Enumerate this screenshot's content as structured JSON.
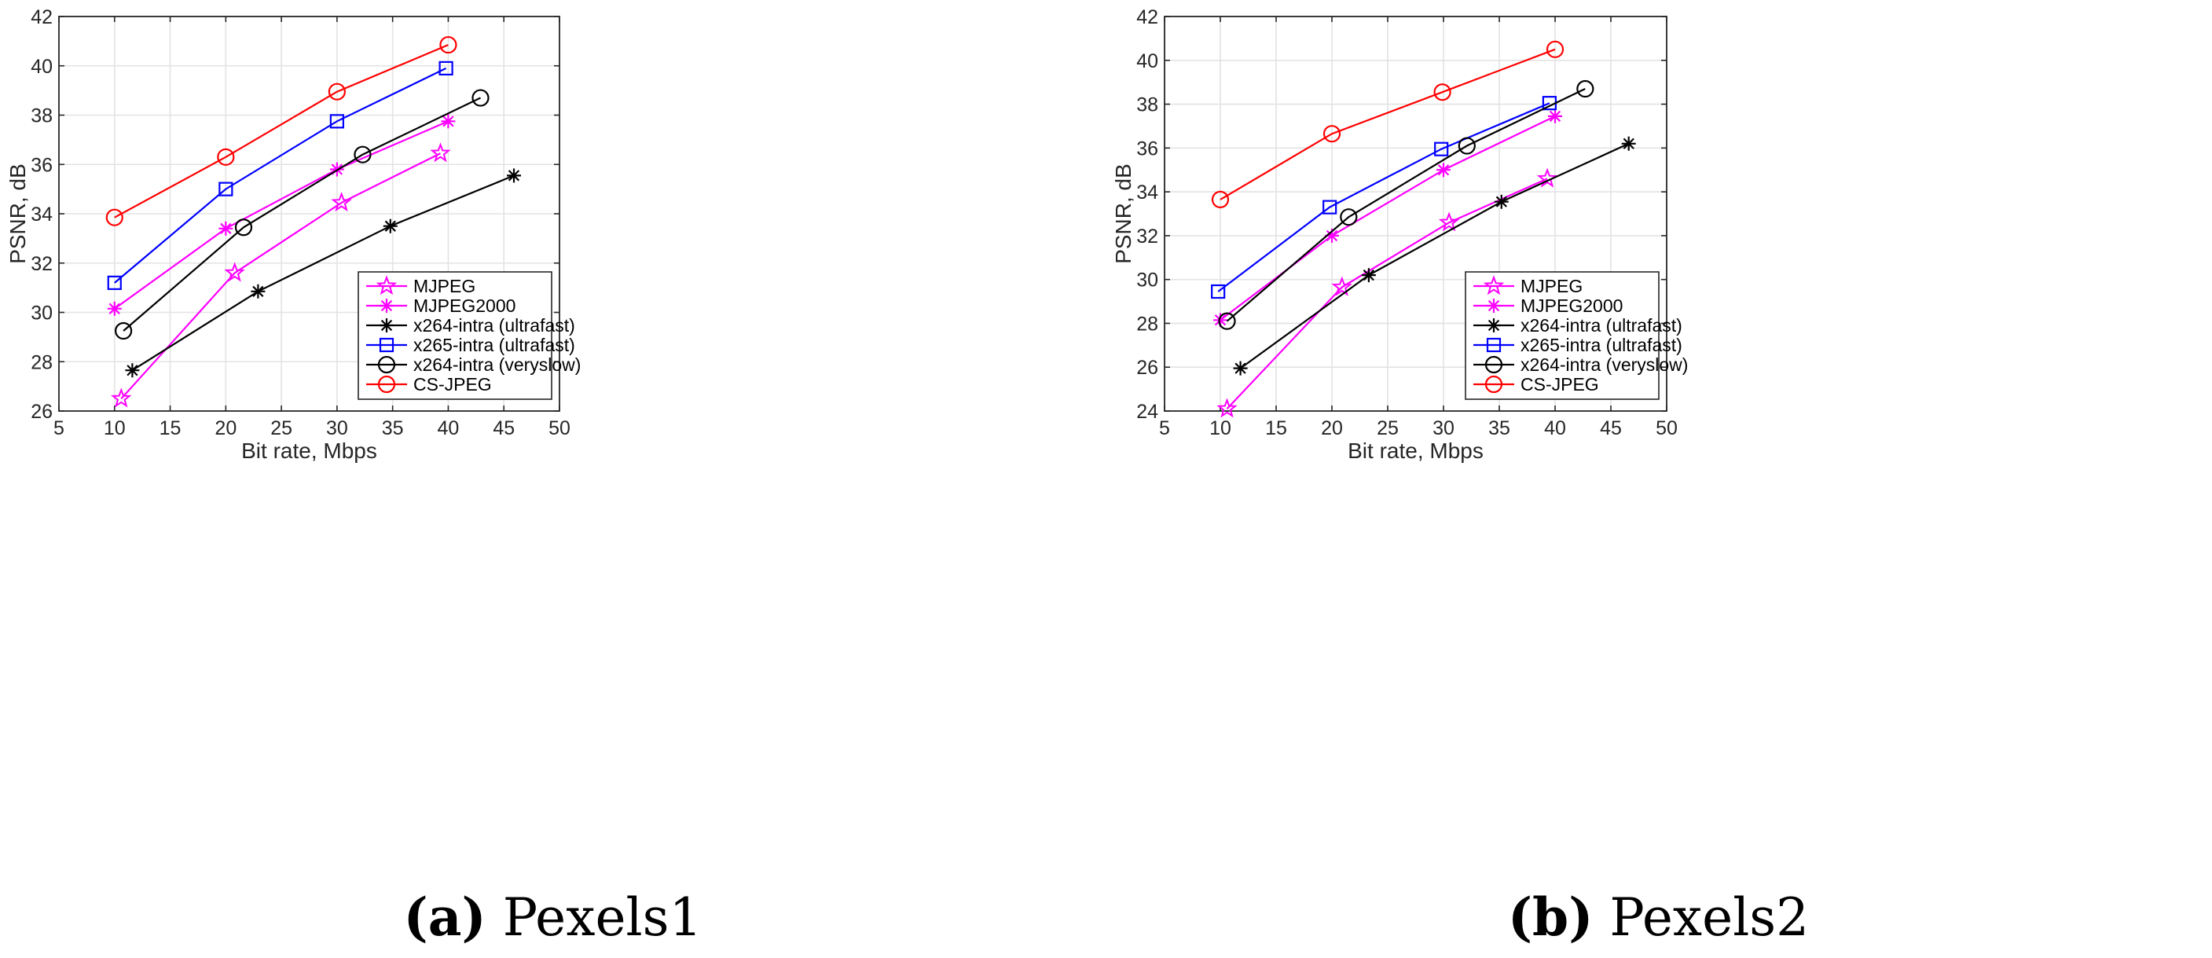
{
  "x_axis": {
    "label": "Bit rate, Mbps",
    "ticks": [
      5,
      10,
      15,
      20,
      25,
      30,
      35,
      40,
      45,
      50
    ],
    "lim": [
      5,
      50
    ]
  },
  "legend_entries": [
    "MJPEG",
    "MJPEG2000",
    "x264-intra (ultrafast)",
    "x265-intra (ultrafast)",
    "x264-intra (veryslow)",
    "CS-JPEG"
  ],
  "series_styles": [
    {
      "color": "#ff00ff",
      "marker": "star"
    },
    {
      "color": "#ff00ff",
      "marker": "asterisk"
    },
    {
      "color": "#000000",
      "marker": "asterisk"
    },
    {
      "color": "#0000ff",
      "marker": "square"
    },
    {
      "color": "#000000",
      "marker": "circle"
    },
    {
      "color": "#ff0000",
      "marker": "circle"
    }
  ],
  "chart_data": [
    {
      "type": "line",
      "caption_tag": "(a)",
      "caption_text": "Pexels1",
      "xlabel": "Bit rate, Mbps",
      "ylabel": "PSNR, dB",
      "xlim": [
        5,
        50
      ],
      "ylim": [
        26,
        42
      ],
      "x_ticks": [
        5,
        10,
        15,
        20,
        25,
        30,
        35,
        40,
        45,
        50
      ],
      "y_ticks": [
        26,
        28,
        30,
        32,
        34,
        36,
        38,
        40,
        42
      ],
      "grid": true,
      "legend_position": "bottom-right",
      "series": [
        {
          "name": "MJPEG",
          "x": [
            10.6,
            20.8,
            30.4,
            39.3
          ],
          "y": [
            26.5,
            31.6,
            34.45,
            36.45
          ]
        },
        {
          "name": "MJPEG2000",
          "x": [
            10.0,
            20.0,
            30.0,
            40.0
          ],
          "y": [
            30.15,
            33.4,
            35.8,
            37.75
          ]
        },
        {
          "name": "x264-intra (ultrafast)",
          "x": [
            11.6,
            22.9,
            34.8,
            45.9
          ],
          "y": [
            27.65,
            30.85,
            33.5,
            35.55
          ]
        },
        {
          "name": "x265-intra (ultrafast)",
          "x": [
            10.0,
            20.0,
            30.0,
            39.8
          ],
          "y": [
            31.2,
            35.0,
            37.75,
            39.9
          ]
        },
        {
          "name": "x264-intra (veryslow)",
          "x": [
            10.8,
            21.6,
            32.3,
            42.9
          ],
          "y": [
            29.25,
            33.45,
            36.4,
            38.7
          ]
        },
        {
          "name": "CS-JPEG",
          "x": [
            10.0,
            20.0,
            30.0,
            40.0
          ],
          "y": [
            33.85,
            36.3,
            38.95,
            40.85
          ]
        }
      ]
    },
    {
      "type": "line",
      "caption_tag": "(b)",
      "caption_text": "Pexels2",
      "xlabel": "Bit rate, Mbps",
      "ylabel": "PSNR, dB",
      "xlim": [
        5,
        50
      ],
      "ylim": [
        24,
        42
      ],
      "x_ticks": [
        5,
        10,
        15,
        20,
        25,
        30,
        35,
        40,
        45,
        50
      ],
      "y_ticks": [
        24,
        26,
        28,
        30,
        32,
        34,
        36,
        38,
        40,
        42
      ],
      "grid": true,
      "legend_position": "bottom-right",
      "series": [
        {
          "name": "MJPEG",
          "x": [
            10.6,
            20.9,
            30.5,
            39.3
          ],
          "y": [
            24.1,
            29.65,
            32.6,
            34.6
          ]
        },
        {
          "name": "MJPEG2000",
          "x": [
            10.0,
            20.0,
            30.0,
            40.0
          ],
          "y": [
            28.15,
            32.0,
            35.0,
            37.45
          ]
        },
        {
          "name": "x264-intra (ultrafast)",
          "x": [
            11.8,
            23.3,
            35.2,
            46.6
          ],
          "y": [
            25.95,
            30.2,
            33.55,
            36.2
          ]
        },
        {
          "name": "x265-intra (ultrafast)",
          "x": [
            9.8,
            19.8,
            29.8,
            39.5
          ],
          "y": [
            29.45,
            33.3,
            35.95,
            38.05
          ]
        },
        {
          "name": "x264-intra (veryslow)",
          "x": [
            10.6,
            21.5,
            32.1,
            42.7
          ],
          "y": [
            28.1,
            32.85,
            36.1,
            38.7
          ]
        },
        {
          "name": "CS-JPEG",
          "x": [
            10.0,
            20.0,
            29.9,
            40.0
          ],
          "y": [
            33.65,
            36.65,
            38.55,
            40.5
          ]
        }
      ]
    }
  ]
}
